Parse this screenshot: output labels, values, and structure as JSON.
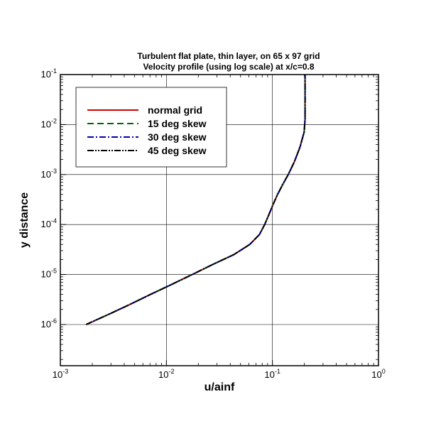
{
  "chart_data": {
    "type": "line",
    "title": "Turbulent flat plate, thin layer, on 65 x 97 grid",
    "subtitle": "Velocity profile (using log scale) at x/c=0.8",
    "xlabel": "u/ainf",
    "ylabel": "y distance",
    "x_scale": "log",
    "y_scale": "log",
    "xlim": [
      0.001,
      1
    ],
    "ylim": [
      1.5e-07,
      0.1
    ],
    "grid": true,
    "legend_position": "top-left",
    "x_ticks": [
      {
        "base": "10",
        "exp": "-3",
        "value": 0.001
      },
      {
        "base": "10",
        "exp": "-2",
        "value": 0.01
      },
      {
        "base": "10",
        "exp": "-1",
        "value": 0.1
      },
      {
        "base": "10",
        "exp": "0",
        "value": 1
      }
    ],
    "y_ticks": [
      {
        "base": "10",
        "exp": "-6",
        "value": 1e-06
      },
      {
        "base": "10",
        "exp": "-5",
        "value": 1e-05
      },
      {
        "base": "10",
        "exp": "-4",
        "value": 0.0001
      },
      {
        "base": "10",
        "exp": "-3",
        "value": 0.001
      },
      {
        "base": "10",
        "exp": "-2",
        "value": 0.01
      },
      {
        "base": "10",
        "exp": "-1",
        "value": 0.1
      }
    ],
    "series": [
      {
        "name": "normal grid",
        "color": "#cc0000",
        "dash": "solid",
        "x": [
          0.00175,
          0.00286,
          0.00449,
          0.00708,
          0.01115,
          0.01751,
          0.02754,
          0.04325,
          0.06115,
          0.07537,
          0.08451,
          0.09261,
          0.10131,
          0.11162,
          0.12493,
          0.14094,
          0.16064,
          0.18193,
          0.19904,
          0.20303,
          0.20303,
          0.20303
        ],
        "y": [
          1e-06,
          1.6e-06,
          2.5e-06,
          4e-06,
          6.3e-06,
          1e-05,
          1.6e-05,
          2.5e-05,
          4e-05,
          6.3e-05,
          0.0001,
          0.000158,
          0.000251,
          0.000398,
          0.000631,
          0.001,
          0.00178,
          0.00355,
          0.00708,
          0.0126,
          0.0355,
          0.1
        ]
      },
      {
        "name": "15 deg skew",
        "color": "#006600",
        "dash": "long-dash",
        "x": [
          0.00175,
          0.00286,
          0.00449,
          0.00708,
          0.01115,
          0.01751,
          0.02754,
          0.04325,
          0.06115,
          0.07537,
          0.08451,
          0.09261,
          0.10131,
          0.11162,
          0.12493,
          0.14094,
          0.16064,
          0.18193,
          0.19904,
          0.20303,
          0.20303,
          0.20303
        ],
        "y": [
          1e-06,
          1.6e-06,
          2.5e-06,
          4e-06,
          6.3e-06,
          1e-05,
          1.6e-05,
          2.5e-05,
          4e-05,
          6.3e-05,
          0.0001,
          0.000158,
          0.000251,
          0.000398,
          0.000631,
          0.001,
          0.00178,
          0.00355,
          0.00708,
          0.0126,
          0.0355,
          0.1
        ]
      },
      {
        "name": "30 deg skew",
        "color": "#0000aa",
        "dash": "dash-dot",
        "x": [
          0.00175,
          0.00286,
          0.00449,
          0.00708,
          0.01115,
          0.01751,
          0.02754,
          0.04325,
          0.06115,
          0.07537,
          0.08451,
          0.09261,
          0.10131,
          0.11162,
          0.12493,
          0.14094,
          0.16064,
          0.18193,
          0.19904,
          0.20303,
          0.20303,
          0.20303
        ],
        "y": [
          1e-06,
          1.6e-06,
          2.5e-06,
          4e-06,
          6.3e-06,
          1e-05,
          1.6e-05,
          2.5e-05,
          4e-05,
          6.3e-05,
          0.0001,
          0.000158,
          0.000251,
          0.000398,
          0.000631,
          0.001,
          0.00178,
          0.00355,
          0.00708,
          0.0126,
          0.0355,
          0.1
        ]
      },
      {
        "name": "45 deg skew",
        "color": "#000000",
        "dash": "dash-dot-dot",
        "x": [
          0.00175,
          0.00286,
          0.00449,
          0.00708,
          0.01115,
          0.01751,
          0.02754,
          0.04325,
          0.06115,
          0.07537,
          0.08451,
          0.09261,
          0.10131,
          0.11162,
          0.12493,
          0.14094,
          0.16064,
          0.18193,
          0.19904,
          0.20303,
          0.20303,
          0.20303
        ],
        "y": [
          1e-06,
          1.6e-06,
          2.5e-06,
          4e-06,
          6.3e-06,
          1e-05,
          1.6e-05,
          2.5e-05,
          4e-05,
          6.3e-05,
          0.0001,
          0.000158,
          0.000251,
          0.000398,
          0.000631,
          0.001,
          0.00178,
          0.00355,
          0.00708,
          0.0126,
          0.0355,
          0.1
        ]
      }
    ]
  }
}
